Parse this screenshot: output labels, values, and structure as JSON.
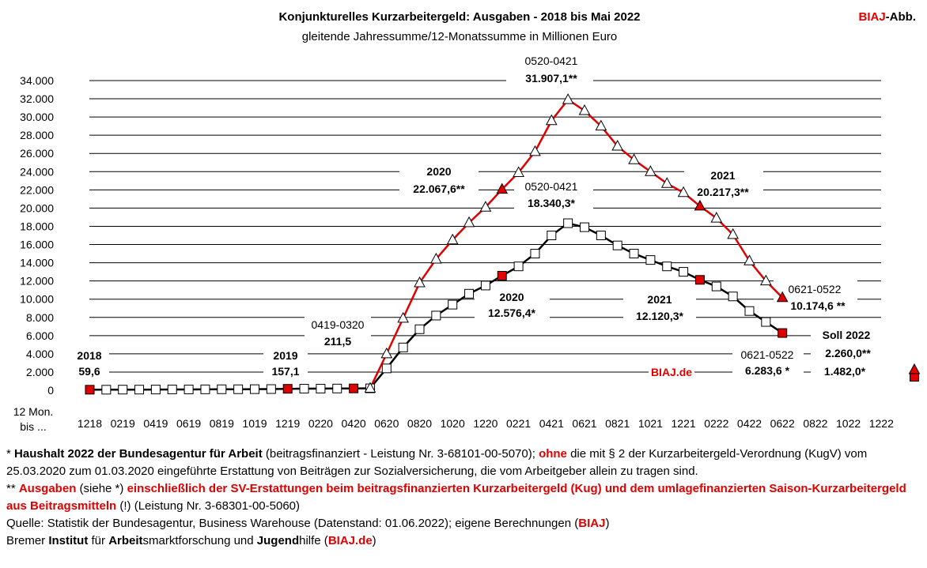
{
  "chart_data": {
    "type": "line",
    "title": "Konjunkturelles Kurzarbeitergeld:  Ausgaben - 2018 bis Mai 2022",
    "subtitle": "gleitende  Jahressumme/12-Monatssumme in Millionen Euro",
    "badge": {
      "brand": "BIAJ",
      "suffix": "-Abb."
    },
    "watermark": "BIAJ.de",
    "ylim": [
      0,
      34000
    ],
    "y_ticks": [
      0,
      2000,
      4000,
      6000,
      8000,
      10000,
      12000,
      14000,
      16000,
      18000,
      20000,
      22000,
      24000,
      26000,
      28000,
      30000,
      32000,
      34000
    ],
    "y_tick_labels": [
      "0",
      "2.000",
      "4.000",
      "6.000",
      "8.000",
      "10.000",
      "12.000",
      "14.000",
      "16.000",
      "18.000",
      "20.000",
      "22.000",
      "24.000",
      "26.000",
      "28.000",
      "30.000",
      "32.000",
      "34.000"
    ],
    "x_title_lines": [
      "12 Mon.",
      "bis ..."
    ],
    "x_tick_labels": [
      "1218",
      "0219",
      "0419",
      "0619",
      "0819",
      "1019",
      "1219",
      "0220",
      "0420",
      "0620",
      "0820",
      "1020",
      "1220",
      "0221",
      "0421",
      "0621",
      "0821",
      "1021",
      "1221",
      "0222",
      "0422",
      "0622",
      "0822",
      "1022",
      "1222"
    ],
    "series": [
      {
        "name": "Ausgaben einschließlich SV-Erstattungen (**)",
        "color": "#e00000",
        "marker": "triangle",
        "values": [
          null,
          null,
          null,
          null,
          null,
          null,
          null,
          null,
          null,
          null,
          null,
          null,
          null,
          null,
          null,
          null,
          null,
          211.5,
          4000,
          7900,
          11800,
          14400,
          16500,
          18400,
          20100,
          22067.6,
          23900,
          26200,
          29600,
          31907.1,
          30700,
          29000,
          26800,
          25300,
          24000,
          22700,
          21700,
          20217.3,
          18900,
          17100,
          14200,
          12000,
          10174.6,
          null,
          null,
          null,
          null,
          null,
          null,
          null,
          null
        ],
        "highlight_indices": [
          25,
          37,
          42
        ]
      },
      {
        "name": "Haushalt 2022 ohne SV-Erstattungen (*)",
        "color": "#000000",
        "marker": "square",
        "values": [
          59.6,
          60,
          70,
          70,
          80,
          90,
          90,
          100,
          110,
          110,
          120,
          130,
          157.1,
          170,
          180,
          190,
          200,
          211.5,
          2400,
          4700,
          6700,
          8200,
          9400,
          10600,
          11500,
          12576.4,
          13600,
          15000,
          17000,
          18340.3,
          17900,
          17000,
          15900,
          15000,
          14300,
          13600,
          13000,
          12120.3,
          11400,
          10300,
          8700,
          7500,
          6283.6,
          null,
          null,
          null,
          null,
          null,
          null,
          null,
          null
        ],
        "highlight_indices": [
          0,
          12,
          16,
          25,
          37,
          42
        ]
      }
    ],
    "targets": [
      {
        "label": "Soll 2022",
        "index": 50,
        "value_with_sv": 2260.0,
        "value_without_sv": 1482.0,
        "text_with_sv": "2.260,0**",
        "text_without_sv": "1.482,0*"
      }
    ],
    "annotations": [
      {
        "id": "a2018-year",
        "text": "2018"
      },
      {
        "id": "a2018-val",
        "text": "59,6"
      },
      {
        "id": "a2019-year",
        "text": "2019"
      },
      {
        "id": "a2019-val",
        "text": "157,1"
      },
      {
        "id": "a0420-period",
        "text": "0419-0320"
      },
      {
        "id": "a0420-val",
        "text": "211,5"
      },
      {
        "id": "apeak-red-period",
        "text": "0520-0421"
      },
      {
        "id": "apeak-red-val",
        "text": "31.907,1**"
      },
      {
        "id": "apeak-black-period",
        "text": "0520-0421"
      },
      {
        "id": "apeak-black-val",
        "text": "18.340,3*"
      },
      {
        "id": "a2020-red-year",
        "text": "2020"
      },
      {
        "id": "a2020-red-val",
        "text": "22.067,6**"
      },
      {
        "id": "a2021-red-year",
        "text": "2021"
      },
      {
        "id": "a2021-red-val",
        "text": "20.217,3**"
      },
      {
        "id": "a2020-black-year",
        "text": "2020"
      },
      {
        "id": "a2020-black-val",
        "text": "12.576,4*"
      },
      {
        "id": "a2021-black-year",
        "text": "2021"
      },
      {
        "id": "a2021-black-val",
        "text": "12.120,3*"
      },
      {
        "id": "alast-red-period",
        "text": "0621-0522"
      },
      {
        "id": "alast-red-val",
        "text": "10.174,6 **"
      },
      {
        "id": "alast-black-period",
        "text": "0621-0522"
      },
      {
        "id": "alast-black-val",
        "text": "6.283,6 *"
      },
      {
        "id": "asoll-title",
        "text": "Soll 2022"
      }
    ]
  },
  "notes": {
    "n1_prefix": "* ",
    "n1_bold": "Haushalt 2022 der Bundesagentur für Arbeit",
    "n1_mid": " (beitragsfinanziert - Leistung Nr. 3-68101-00-5070); ",
    "n1_red": "ohne",
    "n1_rest": " die mit § 2 der Kurzarbeitergeld-Verordnung (KugV) vom 25.03.2020 zum 01.03.2020 eingeführte Erstattung von Beiträgen zur Sozialversicherung, die vom Arbeitgeber allein zu tragen sind.",
    "n2_prefix": "** ",
    "n2_red1": "Ausgaben",
    "n2_mid": " (siehe *) ",
    "n2_red2": "einschließlich der SV-Erstattungen beim beitragsfinanzierten Kurzarbeitergeld (Kug) und dem umlagefinanzierten Saison-Kurzarbeitergeld aus Beitragsmitteln",
    "n2_rest": " (!) (Leistung Nr. 3-68301-00-5060)",
    "source_prefix": "Quelle: Statistik der Bundesagentur, Business Warehouse (Datenstand: 01.06.2022); eigene Berechnungen (",
    "source_brand": "BIAJ",
    "source_suffix": ")",
    "inst_w1": "Bremer ",
    "inst_w2": "Institut",
    "inst_w3": " für ",
    "inst_w4": "Arbeit",
    "inst_w5": "smarktforschung und ",
    "inst_w6": "Jugend",
    "inst_w7": "hilfe (",
    "inst_brand": "BIAJ.de",
    "inst_w8": ")"
  }
}
